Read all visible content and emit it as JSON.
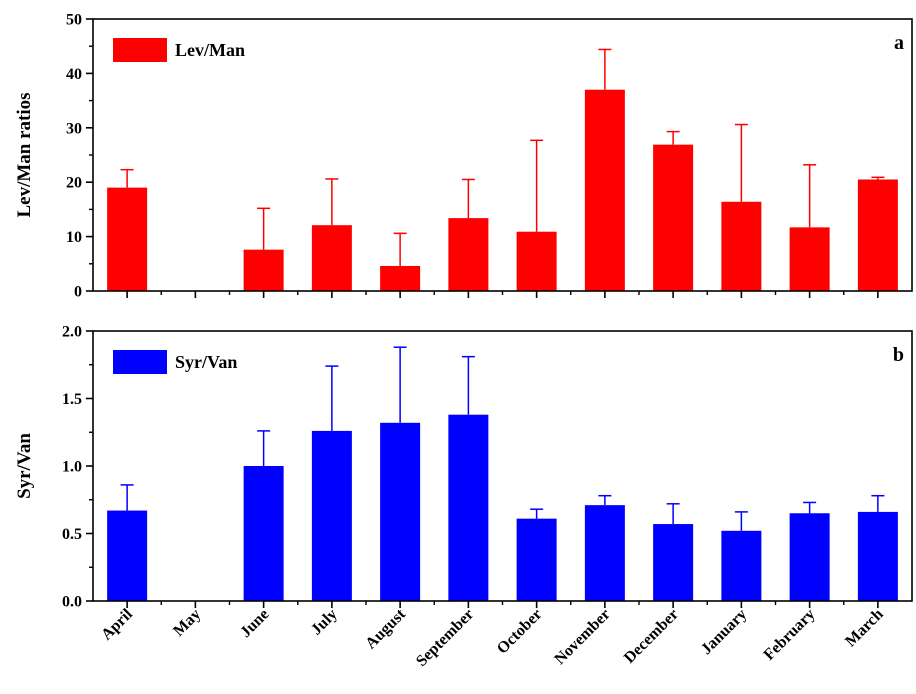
{
  "chart_data": [
    {
      "type": "bar",
      "panel_label": "a",
      "ylabel": "Lev/Man ratios",
      "ylim": [
        0,
        50
      ],
      "yticks": [
        0,
        10,
        20,
        30,
        40,
        50
      ],
      "ytick_labels": [
        "0",
        "10",
        "20",
        "30",
        "40",
        "50"
      ],
      "legend_position": "top-left",
      "categories": [
        "April",
        "May",
        "June",
        "July",
        "August",
        "September",
        "October",
        "November",
        "December",
        "January",
        "February",
        "March"
      ],
      "series": [
        {
          "name": "Lev/Man",
          "color": "#ff0000",
          "values": [
            19.0,
            null,
            7.6,
            12.1,
            4.6,
            13.4,
            10.9,
            37.0,
            26.9,
            16.4,
            11.7,
            20.5
          ],
          "error_upper": [
            3.3,
            null,
            7.6,
            8.5,
            6.0,
            7.1,
            16.8,
            7.4,
            2.4,
            14.2,
            11.5,
            0.4
          ]
        }
      ]
    },
    {
      "type": "bar",
      "panel_label": "b",
      "ylabel": "Syr/Van",
      "ylim": [
        0,
        2.0
      ],
      "yticks": [
        0,
        0.5,
        1.0,
        1.5,
        2.0
      ],
      "ytick_labels": [
        "0.0",
        "0.5",
        "1.0",
        "1.5",
        "2.0"
      ],
      "legend_position": "top-left",
      "categories": [
        "April",
        "May",
        "June",
        "July",
        "August",
        "September",
        "October",
        "November",
        "December",
        "January",
        "February",
        "March"
      ],
      "series": [
        {
          "name": "Syr/Van",
          "color": "#0000ff",
          "values": [
            0.67,
            null,
            1.0,
            1.26,
            1.32,
            1.38,
            0.61,
            0.71,
            0.57,
            0.52,
            0.65,
            0.66
          ],
          "error_upper": [
            0.19,
            null,
            0.26,
            0.48,
            0.56,
            0.43,
            0.07,
            0.07,
            0.15,
            0.14,
            0.08,
            0.12
          ]
        }
      ]
    }
  ]
}
